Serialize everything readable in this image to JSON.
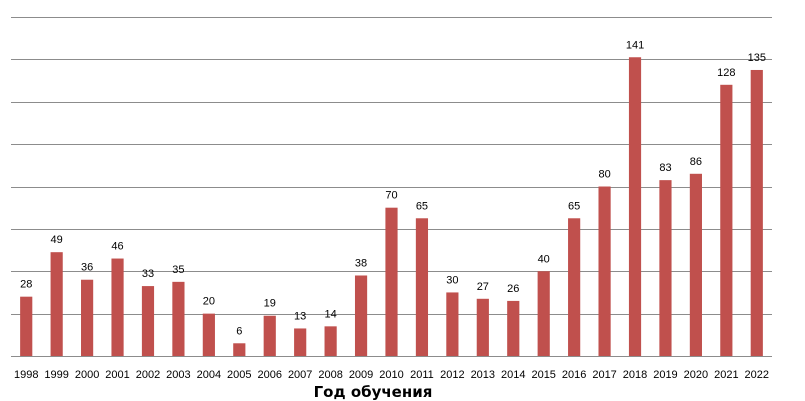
{
  "chart_data": {
    "type": "bar",
    "title": "",
    "xlabel": "Год обучения",
    "ylabel": "",
    "categories": [
      "1998",
      "1999",
      "2000",
      "2001",
      "2002",
      "2003",
      "2004",
      "2005",
      "2006",
      "2007",
      "2008",
      "2009",
      "2010",
      "2011",
      "2012",
      "2013",
      "2014",
      "2015",
      "2016",
      "2017",
      "2018",
      "2019",
      "2020",
      "2021",
      "2022"
    ],
    "values": [
      28,
      49,
      36,
      46,
      33,
      35,
      20,
      6,
      19,
      13,
      14,
      38,
      70,
      65,
      30,
      27,
      26,
      40,
      65,
      80,
      141,
      83,
      86,
      128,
      135
    ],
    "ylim": [
      0,
      160
    ],
    "grid": true,
    "legend": "none",
    "bar_color": "#c0504d"
  }
}
